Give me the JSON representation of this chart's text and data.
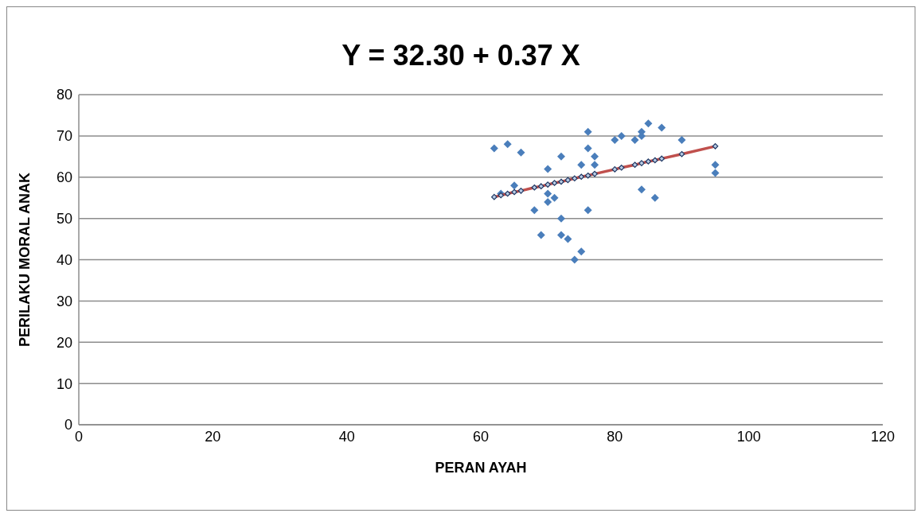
{
  "chart_data": {
    "type": "scatter",
    "title": "Y = 32.30 + 0.37 X",
    "xlabel": "PERAN AYAH",
    "ylabel": "PERILAKU MORAL ANAK",
    "xlim": [
      0,
      120
    ],
    "xticks": [
      0,
      20,
      40,
      60,
      80,
      100,
      120
    ],
    "ylim": [
      0,
      80
    ],
    "yticks": [
      0,
      10,
      20,
      30,
      40,
      50,
      60,
      70,
      80
    ],
    "grid": "y",
    "legend": false,
    "marker": "diamond",
    "series": [
      {
        "type": "scatter",
        "color": "#4a7ebb",
        "x": [
          62,
          63,
          64,
          65,
          66,
          68,
          69,
          70,
          70,
          70,
          71,
          72,
          72,
          72,
          73,
          74,
          75,
          75,
          76,
          76,
          76,
          77,
          77,
          80,
          81,
          83,
          84,
          84,
          84,
          85,
          86,
          87,
          90,
          95,
          95
        ],
        "values": [
          67,
          56,
          68,
          58,
          66,
          52,
          46,
          62,
          56,
          54,
          55,
          65,
          50,
          46,
          45,
          40,
          63,
          42,
          71,
          67,
          52,
          65,
          63,
          69,
          70,
          69,
          71,
          70,
          57,
          73,
          55,
          72,
          69,
          63,
          61
        ]
      },
      {
        "type": "line",
        "color": "#c0504d",
        "line_style": "solid",
        "x": [
          62,
          63,
          64,
          65,
          66,
          68,
          69,
          70,
          71,
          72,
          73,
          74,
          75,
          76,
          77,
          80,
          81,
          83,
          84,
          85,
          86,
          87,
          90,
          95
        ],
        "values": [
          55.2,
          55.6,
          56.0,
          56.4,
          56.7,
          57.5,
          57.8,
          58.2,
          58.6,
          58.9,
          59.3,
          59.7,
          60.1,
          60.4,
          60.8,
          61.9,
          62.3,
          63.0,
          63.4,
          63.8,
          64.1,
          64.5,
          65.6,
          67.5
        ]
      }
    ]
  }
}
